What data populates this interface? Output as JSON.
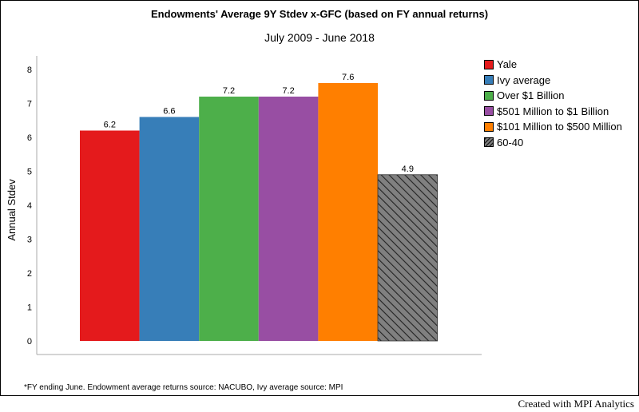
{
  "chart_data": {
    "type": "bar",
    "title": "Endowments' Average 9Y Stdev x-GFC (based on FY annual returns)",
    "subtitle": "July 2009 - June 2018",
    "ylabel": "Annual Stdev",
    "xlabel": "",
    "ylim": [
      0,
      8
    ],
    "yticks": [
      "0",
      "1",
      "2",
      "3",
      "4",
      "5",
      "6",
      "7",
      "8"
    ],
    "categories": [
      "Yale",
      "Ivy average",
      "Over $1 Billion",
      "$501 Million to $1 Billion",
      "$101 Million to $500 Million",
      "60-40"
    ],
    "values": [
      6.2,
      6.6,
      7.2,
      7.2,
      7.6,
      4.9
    ],
    "data_labels": [
      "6.2",
      "6.6",
      "7.2",
      "7.2",
      "7.6",
      "4.9"
    ],
    "colors": [
      "#e41a1c",
      "#377eb8",
      "#4daf4a",
      "#984ea3",
      "#ff7f00",
      "#808080"
    ],
    "hatched": [
      false,
      false,
      false,
      false,
      false,
      true
    ],
    "legend_position": "right",
    "grid": false
  },
  "footnote": "*FY ending June. Endowment average returns source: NACUBO, Ivy average source: MPI",
  "credit": "Created with MPI Analytics"
}
